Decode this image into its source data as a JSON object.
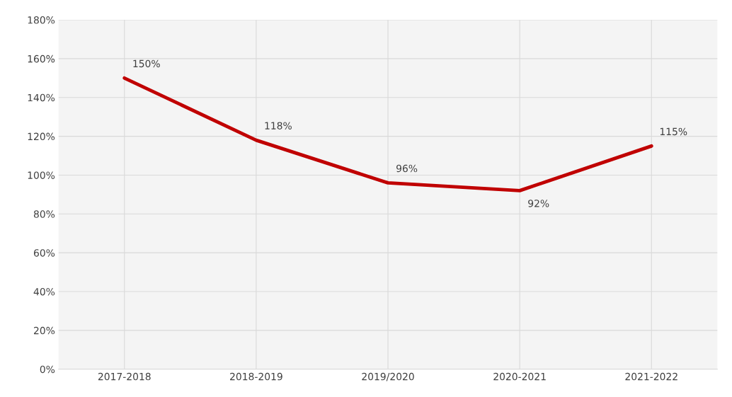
{
  "chart_data": {
    "type": "line",
    "categories": [
      "2017-2018",
      "2018-2019",
      "2019/2020",
      "2020-2021",
      "2021-2022"
    ],
    "series": [
      {
        "color": "#c00000",
        "values": [
          150,
          118,
          96,
          92,
          115
        ],
        "value_labels": [
          "150%",
          "118%",
          "96%",
          "92%",
          "115%"
        ]
      }
    ],
    "ylim": [
      0,
      180
    ],
    "yticks": [
      {
        "value": 0,
        "label": "0%"
      },
      {
        "value": 20,
        "label": "20%"
      },
      {
        "value": 40,
        "label": "40%"
      },
      {
        "value": 60,
        "label": "60%"
      },
      {
        "value": 80,
        "label": "80%"
      },
      {
        "value": 100,
        "label": "100%"
      },
      {
        "value": 120,
        "label": "120%"
      },
      {
        "value": 140,
        "label": "140%"
      },
      {
        "value": 160,
        "label": "160%"
      },
      {
        "value": 180,
        "label": "180%"
      }
    ],
    "grid": true,
    "marker": "none",
    "line_style": "solid"
  }
}
